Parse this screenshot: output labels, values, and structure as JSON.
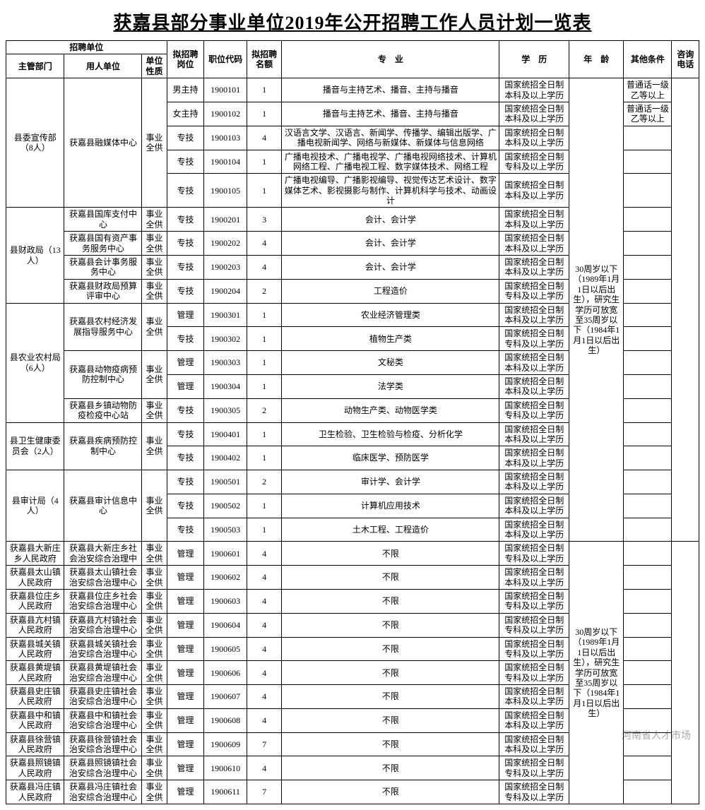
{
  "title": "获嘉县部分事业单位2019年公开招聘工作人员计划一览表",
  "watermark": "河南省人才市场",
  "headers": {
    "recruit_unit": "招聘单位",
    "dept": "主管部门",
    "employer": "用人单位",
    "nature": "单位性质",
    "position": "拟招聘岗位",
    "code": "职位代码",
    "count": "拟招聘名额",
    "major": "专　业",
    "education": "学　历",
    "age": "年　龄",
    "other": "其他条件",
    "phone": "咨询电话"
  },
  "age_block1": "30周岁以下（1989年1月1日以后出生），研究生学历可放宽至35周岁以下（1984年1月1日以后出生）",
  "age_block2": "30周岁以下（1989年1月1日以后出生），研究生学历可放宽至35周岁以下（1984年1月1日以后出生）",
  "depts": [
    {
      "name": "县委宣传部（8人）",
      "employers": [
        {
          "name": "获嘉县融媒体中心",
          "nature": "事业全供",
          "rows": [
            {
              "pos": "男主持",
              "code": "1900101",
              "n": "1",
              "major": "播音与主持艺术、播音、主持与播音",
              "edu": "国家统招全日制本科及以上学历",
              "other": "普通话一级乙等以上"
            },
            {
              "pos": "女主持",
              "code": "1900102",
              "n": "1",
              "major": "播音与主持艺术、播音、主持与播音",
              "edu": "国家统招全日制本科及以上学历",
              "other": "普通话一级乙等以上"
            },
            {
              "pos": "专技",
              "code": "1900103",
              "n": "4",
              "major": "汉语言文学、汉语言、新闻学、传播学、编辑出版学、广播电视新闻学、网络与新媒体、新媒体与信息网络",
              "edu": "国家统招全日制本科及以上学历",
              "other": ""
            },
            {
              "pos": "专技",
              "code": "1900104",
              "n": "1",
              "major": "广播电视技术、广播电视学、广播电视网络技术、计算机网络工程、广播电视工程、数字媒体技术、网络工程",
              "edu": "国家统招全日制专科及以上学历",
              "other": ""
            },
            {
              "pos": "专技",
              "code": "1900105",
              "n": "1",
              "major": "广播电视编导、广播影视编导、视觉传达艺术设计、数字媒体艺术、影视摄影与制作、计算机科学与技术、动画设计",
              "edu": "国家统招全日制本科及以上学历",
              "other": ""
            }
          ]
        }
      ]
    },
    {
      "name": "县财政局（13人）",
      "employers": [
        {
          "name": "获嘉县国库支付中心",
          "nature": "事业全供",
          "rows": [
            {
              "pos": "专技",
              "code": "1900201",
              "n": "3",
              "major": "会计、会计学",
              "edu": "国家统招全日制本科及以上学历",
              "other": ""
            }
          ]
        },
        {
          "name": "获嘉县国有资产事务服务中心",
          "nature": "事业全供",
          "rows": [
            {
              "pos": "专技",
              "code": "1900202",
              "n": "4",
              "major": "会计、会计学",
              "edu": "国家统招全日制本科及以上学历",
              "other": ""
            }
          ]
        },
        {
          "name": "获嘉县会计事务服务中心",
          "nature": "事业全供",
          "rows": [
            {
              "pos": "专技",
              "code": "1900203",
              "n": "4",
              "major": "会计、会计学",
              "edu": "国家统招全日制本科及以上学历",
              "other": ""
            }
          ]
        },
        {
          "name": "获嘉县财政局预算评审中心",
          "nature": "事业全供",
          "rows": [
            {
              "pos": "专技",
              "code": "1900204",
              "n": "2",
              "major": "工程造价",
              "edu": "国家统招全日制专科及以上学历",
              "other": ""
            }
          ]
        }
      ]
    },
    {
      "name": "县农业农村局（6人）",
      "employers": [
        {
          "name": "获嘉县农村经济发展指导服务中心",
          "nature": "事业全供",
          "rows": [
            {
              "pos": "管理",
              "code": "1900301",
              "n": "1",
              "major": "农业经济管理类",
              "edu": "国家统招全日制本科及以上学历",
              "other": ""
            },
            {
              "pos": "专技",
              "code": "1900302",
              "n": "1",
              "major": "植物生产类",
              "edu": "国家统招全日制专科及以上学历",
              "other": ""
            }
          ]
        },
        {
          "name": "获嘉县动物疫病预防控制中心",
          "nature": "事业全供",
          "rows": [
            {
              "pos": "管理",
              "code": "1900303",
              "n": "1",
              "major": "文秘类",
              "edu": "国家统招全日制本科及以上学历",
              "other": ""
            },
            {
              "pos": "管理",
              "code": "1900304",
              "n": "1",
              "major": "法学类",
              "edu": "国家统招全日制本科及以上学历",
              "other": ""
            }
          ]
        },
        {
          "name": "获嘉县乡镇动物防疫检疫中心站",
          "nature": "事业全供",
          "rows": [
            {
              "pos": "专技",
              "code": "1900305",
              "n": "2",
              "major": "动物生产类、动物医学类",
              "edu": "国家统招全日制专科及以上学历",
              "other": ""
            }
          ]
        }
      ]
    },
    {
      "name": "县卫生健康委员会（2人）",
      "employers": [
        {
          "name": "获嘉县疾病预防控制中心",
          "nature": "事业全供",
          "rows": [
            {
              "pos": "专技",
              "code": "1900401",
              "n": "1",
              "major": "卫生检验、卫生检验与检疫、分析化学",
              "edu": "国家统招全日制本科及以上学历",
              "other": ""
            },
            {
              "pos": "专技",
              "code": "1900402",
              "n": "1",
              "major": "临床医学、预防医学",
              "edu": "国家统招全日制本科及以上学历",
              "other": ""
            }
          ]
        }
      ]
    },
    {
      "name": "县审计局（4人）",
      "employers": [
        {
          "name": "获嘉县审计信息中心",
          "nature": "事业全供",
          "rows": [
            {
              "pos": "专技",
              "code": "1900501",
              "n": "2",
              "major": "审计学、会计学",
              "edu": "国家统招全日制本科及以上学历",
              "other": ""
            },
            {
              "pos": "专技",
              "code": "1900502",
              "n": "1",
              "major": "计算机应用技术",
              "edu": "国家统招全日制本科及以上学历",
              "other": ""
            },
            {
              "pos": "专技",
              "code": "1900503",
              "n": "1",
              "major": "土木工程、工程造价",
              "edu": "国家统招全日制本科及以上学历",
              "other": ""
            }
          ]
        }
      ]
    },
    {
      "name": "获嘉县大新庄乡人民政府",
      "employers": [
        {
          "name": "获嘉县大新庄乡社会治安综合治理中",
          "nature": "事业全供",
          "rows": [
            {
              "pos": "管理",
              "code": "1900601",
              "n": "4",
              "major": "不限",
              "edu": "国家统招全日制专科及以上学历",
              "other": ""
            }
          ]
        }
      ]
    },
    {
      "name": "获嘉县太山镇人民政府",
      "employers": [
        {
          "name": "获嘉县太山镇社会治安综合治理中心",
          "nature": "事业全供",
          "rows": [
            {
              "pos": "管理",
              "code": "1900602",
              "n": "4",
              "major": "不限",
              "edu": "国家统招全日制本科及以上学历",
              "other": ""
            }
          ]
        }
      ]
    },
    {
      "name": "获嘉县位庄乡人民政府",
      "employers": [
        {
          "name": "获嘉县位庄乡社会治安综合治理中心",
          "nature": "事业全供",
          "rows": [
            {
              "pos": "管理",
              "code": "1900603",
              "n": "4",
              "major": "不限",
              "edu": "国家统招全日制专科及以上学历",
              "other": ""
            }
          ]
        }
      ]
    },
    {
      "name": "获嘉县亢村镇人民政府",
      "employers": [
        {
          "name": "获嘉县亢村镇社会治安综合治理中心",
          "nature": "事业全供",
          "rows": [
            {
              "pos": "管理",
              "code": "1900604",
              "n": "4",
              "major": "不限",
              "edu": "国家统招全日制专科及以上学历",
              "other": ""
            }
          ]
        }
      ]
    },
    {
      "name": "获嘉县城关镇人民政府",
      "employers": [
        {
          "name": "获嘉县城关镇社会治安综合治理中心",
          "nature": "事业全供",
          "rows": [
            {
              "pos": "管理",
              "code": "1900605",
              "n": "4",
              "major": "不限",
              "edu": "国家统招全日制专科及以上学历",
              "other": ""
            }
          ]
        }
      ]
    },
    {
      "name": "获嘉县黄堤镇人民政府",
      "employers": [
        {
          "name": "获嘉县黄堤镇社会治安综合治理中心",
          "nature": "事业全供",
          "rows": [
            {
              "pos": "管理",
              "code": "1900606",
              "n": "4",
              "major": "不限",
              "edu": "国家统招全日制专科及以上学历",
              "other": ""
            }
          ]
        }
      ]
    },
    {
      "name": "获嘉县史庄镇人民政府",
      "employers": [
        {
          "name": "获嘉县史庄镇社会治安综合治理中心",
          "nature": "事业全供",
          "rows": [
            {
              "pos": "管理",
              "code": "1900607",
              "n": "4",
              "major": "不限",
              "edu": "国家统招全日制本科及以上学历",
              "other": ""
            }
          ]
        }
      ]
    },
    {
      "name": "获嘉县中和镇人民政府",
      "employers": [
        {
          "name": "获嘉县中和镇社会治安综合治理中心",
          "nature": "事业全供",
          "rows": [
            {
              "pos": "管理",
              "code": "1900608",
              "n": "4",
              "major": "不限",
              "edu": "国家统招全日制本科及以上学历",
              "other": ""
            }
          ]
        }
      ]
    },
    {
      "name": "获嘉县徐营镇人民政府",
      "employers": [
        {
          "name": "获嘉县徐营镇社会治安综合治理中心",
          "nature": "事业全供",
          "rows": [
            {
              "pos": "管理",
              "code": "1900609",
              "n": "7",
              "major": "不限",
              "edu": "国家统招全日制本科及以上学历",
              "other": ""
            }
          ]
        }
      ]
    },
    {
      "name": "获嘉县照镜镇人民政府",
      "employers": [
        {
          "name": "获嘉县照镜镇社会治安综合治理中心",
          "nature": "事业全供",
          "rows": [
            {
              "pos": "管理",
              "code": "1900610",
              "n": "4",
              "major": "不限",
              "edu": "国家统招全日制专科及以上学历",
              "other": ""
            }
          ]
        }
      ]
    },
    {
      "name": "获嘉县冯庄镇人民政府",
      "employers": [
        {
          "name": "获嘉县冯庄镇社会治安综合治理中心",
          "nature": "事业全供",
          "rows": [
            {
              "pos": "管理",
              "code": "1900611",
              "n": "7",
              "major": "不限",
              "edu": "国家统招全日制专科及以上学历",
              "other": ""
            }
          ]
        }
      ]
    }
  ]
}
